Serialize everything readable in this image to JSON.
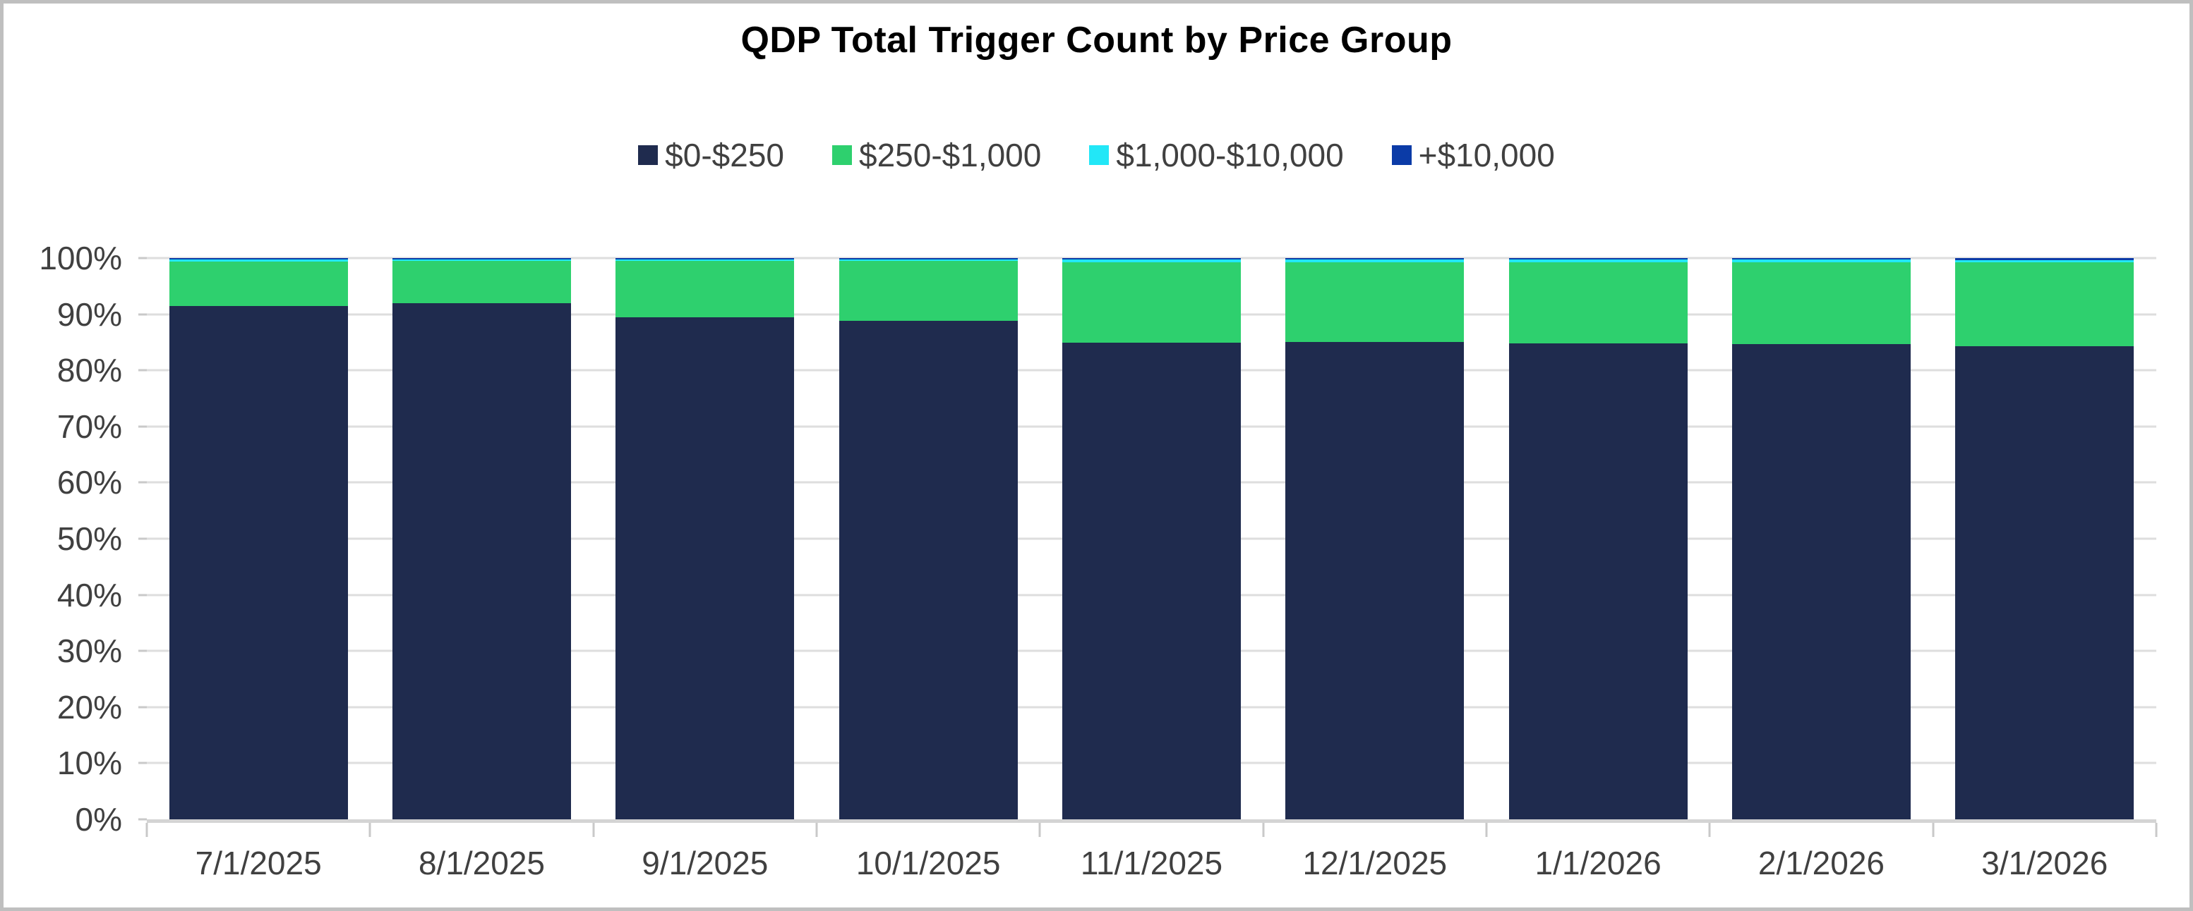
{
  "frame": {
    "border_color": "#bfbfbf",
    "background": "#ffffff"
  },
  "colors": {
    "title_text": "#000000",
    "axis_text": "#404040",
    "gridline": "#dedede",
    "baseline": "#d4d4d4",
    "tick": "#c9c9c9"
  },
  "chart_data": {
    "type": "bar",
    "stacked": true,
    "percent_stacked": true,
    "title": "QDP Total Trigger Count by Price Group",
    "xlabel": "",
    "ylabel": "",
    "grid": true,
    "legend_position": "top-center",
    "categories": [
      "7/1/2025",
      "8/1/2025",
      "9/1/2025",
      "10/1/2025",
      "11/1/2025",
      "12/1/2025",
      "1/1/2026",
      "2/1/2026",
      "3/1/2026"
    ],
    "series": [
      {
        "name": "$0-$250",
        "color": "#1f2b4e",
        "values": [
          91.5,
          91.9,
          89.5,
          88.8,
          84.9,
          85.1,
          84.8,
          84.7,
          84.3
        ]
      },
      {
        "name": "$250-$1,000",
        "color": "#2ed06e",
        "values": [
          7.9,
          7.6,
          10.0,
          10.7,
          14.4,
          14.2,
          14.5,
          14.6,
          14.9
        ]
      },
      {
        "name": "$1,000-$10,000",
        "color": "#22e7f7",
        "values": [
          0.3,
          0.2,
          0.2,
          0.2,
          0.4,
          0.4,
          0.4,
          0.4,
          0.4
        ]
      },
      {
        "name": "+$10,000",
        "color": "#0b3ba7",
        "values": [
          0.3,
          0.3,
          0.3,
          0.3,
          0.3,
          0.3,
          0.3,
          0.3,
          0.4
        ]
      }
    ],
    "y_axis": {
      "min": 0,
      "max": 100,
      "step": 10,
      "unit": "%",
      "tick_labels": [
        "0%",
        "10%",
        "20%",
        "30%",
        "40%",
        "50%",
        "60%",
        "70%",
        "80%",
        "90%",
        "100%"
      ]
    }
  }
}
